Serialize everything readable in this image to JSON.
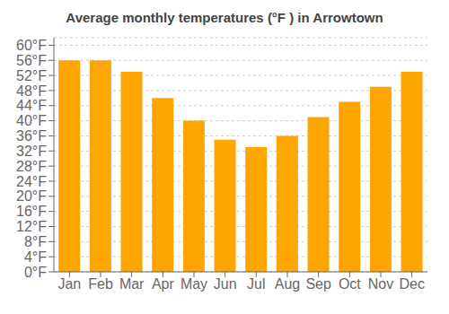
{
  "chart_data": {
    "type": "bar",
    "title": "Average monthly temperatures (°F ) in Arrowtown",
    "categories": [
      "Jan",
      "Feb",
      "Mar",
      "Apr",
      "May",
      "Jun",
      "Jul",
      "Aug",
      "Sep",
      "Oct",
      "Nov",
      "Dec"
    ],
    "values": [
      56,
      56,
      53,
      46,
      40,
      35,
      33,
      36,
      41,
      45,
      49,
      53
    ],
    "color": "#FFA500",
    "ylim": [
      0,
      62
    ],
    "yticks": [
      {
        "value": 0,
        "label": "0°F"
      },
      {
        "value": 4,
        "label": "4°F"
      },
      {
        "value": 8,
        "label": "8°F"
      },
      {
        "value": 12,
        "label": "12°F"
      },
      {
        "value": 16,
        "label": "16°F"
      },
      {
        "value": 20,
        "label": "20°F"
      },
      {
        "value": 24,
        "label": "24°F"
      },
      {
        "value": 28,
        "label": "28°F"
      },
      {
        "value": 32,
        "label": "32°F"
      },
      {
        "value": 36,
        "label": "36°F"
      },
      {
        "value": 40,
        "label": "40°F"
      },
      {
        "value": 44,
        "label": "44°F"
      },
      {
        "value": 48,
        "label": "48°F"
      },
      {
        "value": 52,
        "label": "52°F"
      },
      {
        "value": 56,
        "label": "56°F"
      },
      {
        "value": 60,
        "label": "60°F"
      }
    ],
    "grid": true
  }
}
